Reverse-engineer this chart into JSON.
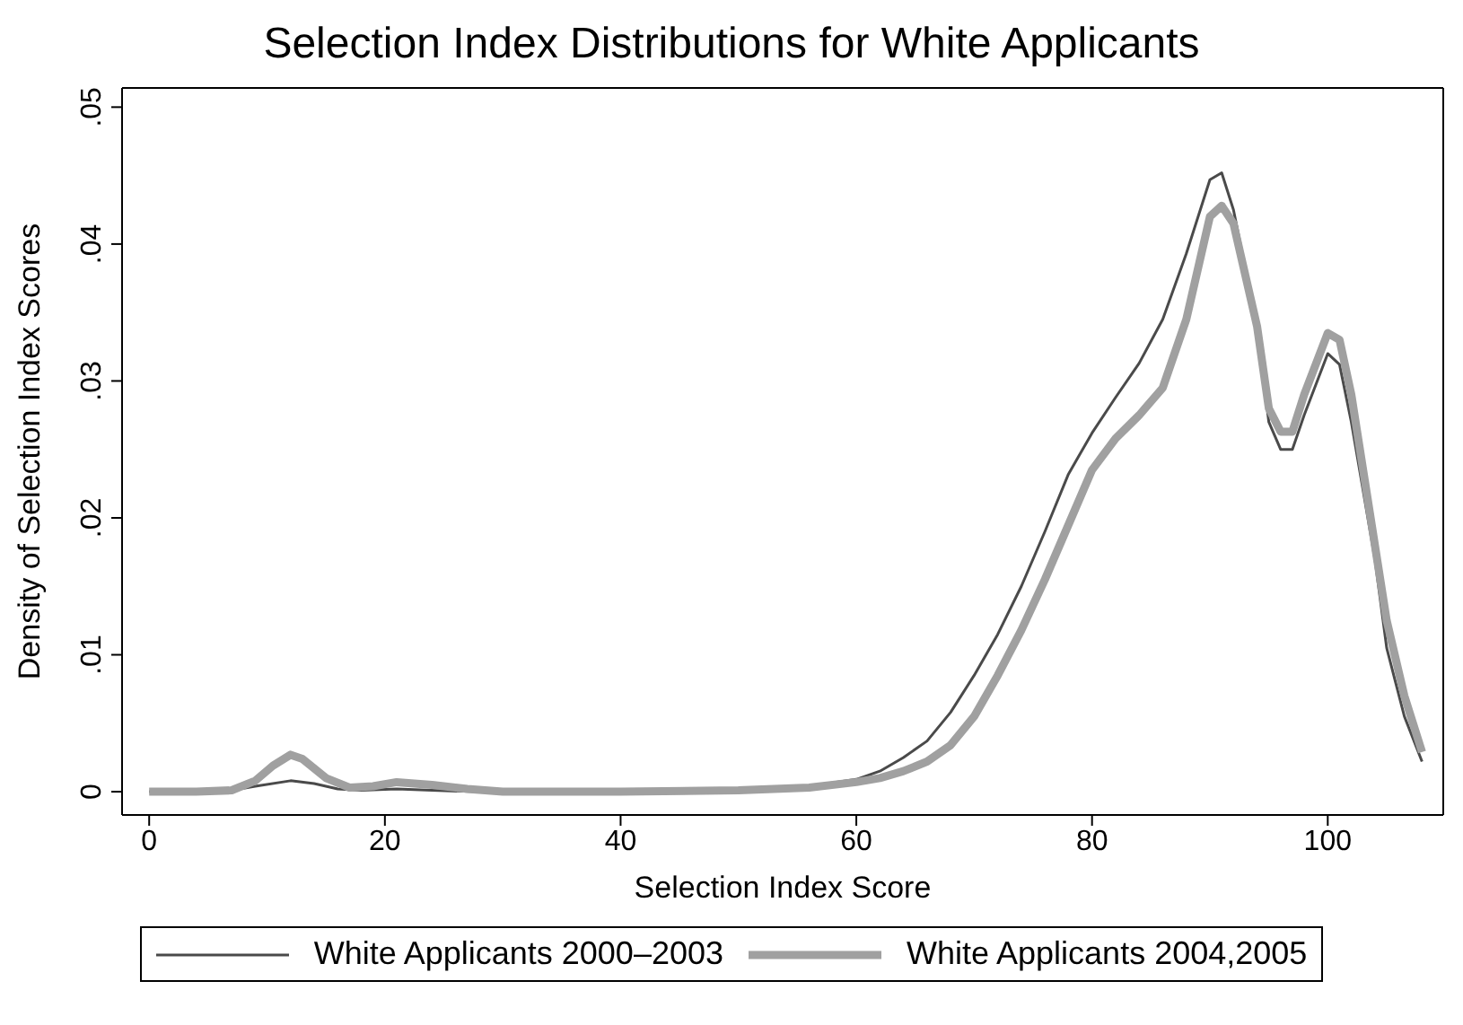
{
  "chart_data": {
    "type": "line",
    "title": "Selection Index Distributions for White Applicants",
    "xlabel": "Selection Index Score",
    "ylabel": "Density of Selection Index Scores",
    "xlim": [
      -2.3,
      109.8
    ],
    "xticks": [
      0,
      20,
      40,
      60,
      80,
      100
    ],
    "ylim": [
      -0.0017,
      0.0514
    ],
    "yticks": [
      {
        "value": 0,
        "label": "0"
      },
      {
        "value": 0.01,
        "label": ".01"
      },
      {
        "value": 0.02,
        "label": ".02"
      },
      {
        "value": 0.03,
        "label": ".03"
      },
      {
        "value": 0.04,
        "label": ".04"
      },
      {
        "value": 0.05,
        "label": ".05"
      }
    ],
    "grid": false,
    "legend": "bottom",
    "marker": "none",
    "line_style": "solid",
    "series": [
      {
        "name": "White Applicants 2000–2003",
        "color": "#4a4a4a",
        "x": [
          0,
          4,
          7,
          9,
          12,
          14,
          16,
          18,
          21,
          24,
          28,
          40,
          50,
          56,
          60,
          62,
          64,
          66,
          68,
          70,
          72,
          74,
          76,
          78,
          80,
          82,
          84,
          86,
          88,
          90,
          91,
          92,
          94,
          95,
          96,
          97,
          98,
          100,
          101,
          102,
          104,
          105,
          106.5,
          108
        ],
        "values": [
          0,
          0,
          0.0001,
          0.0004,
          0.0008,
          0.0006,
          0.0002,
          0.0001,
          0.0002,
          0.0001,
          0,
          0,
          0.0001,
          0.0004,
          0.0009,
          0.0015,
          0.0025,
          0.0037,
          0.0058,
          0.0085,
          0.0115,
          0.015,
          0.019,
          0.0232,
          0.0262,
          0.0288,
          0.0313,
          0.0345,
          0.0393,
          0.0447,
          0.0452,
          0.0425,
          0.034,
          0.027,
          0.025,
          0.025,
          0.0275,
          0.032,
          0.0312,
          0.027,
          0.017,
          0.0105,
          0.0055,
          0.0022
        ]
      },
      {
        "name": "White Applicants 2004,2005",
        "color": "#a0a0a0",
        "x": [
          0,
          4,
          7,
          9,
          10.5,
          12,
          13,
          15,
          17,
          19,
          21,
          24,
          27,
          30,
          40,
          50,
          56,
          60,
          62,
          64,
          66,
          68,
          70,
          72,
          74,
          76,
          78,
          80,
          82,
          84,
          86,
          88,
          90,
          91,
          92,
          94,
          95,
          96,
          97,
          98,
          100,
          101,
          102,
          104,
          105,
          106.5,
          108
        ],
        "values": [
          0,
          0,
          0.0001,
          0.0008,
          0.0019,
          0.0027,
          0.0024,
          0.001,
          0.0003,
          0.0004,
          0.0007,
          0.0005,
          0.0002,
          0,
          0,
          0.0001,
          0.0003,
          0.0007,
          0.001,
          0.0015,
          0.0022,
          0.0034,
          0.0055,
          0.0085,
          0.0118,
          0.0155,
          0.0195,
          0.0235,
          0.0258,
          0.0275,
          0.0295,
          0.0345,
          0.042,
          0.0428,
          0.0415,
          0.034,
          0.028,
          0.0263,
          0.0263,
          0.029,
          0.0335,
          0.033,
          0.029,
          0.018,
          0.0125,
          0.007,
          0.0029
        ]
      }
    ]
  }
}
